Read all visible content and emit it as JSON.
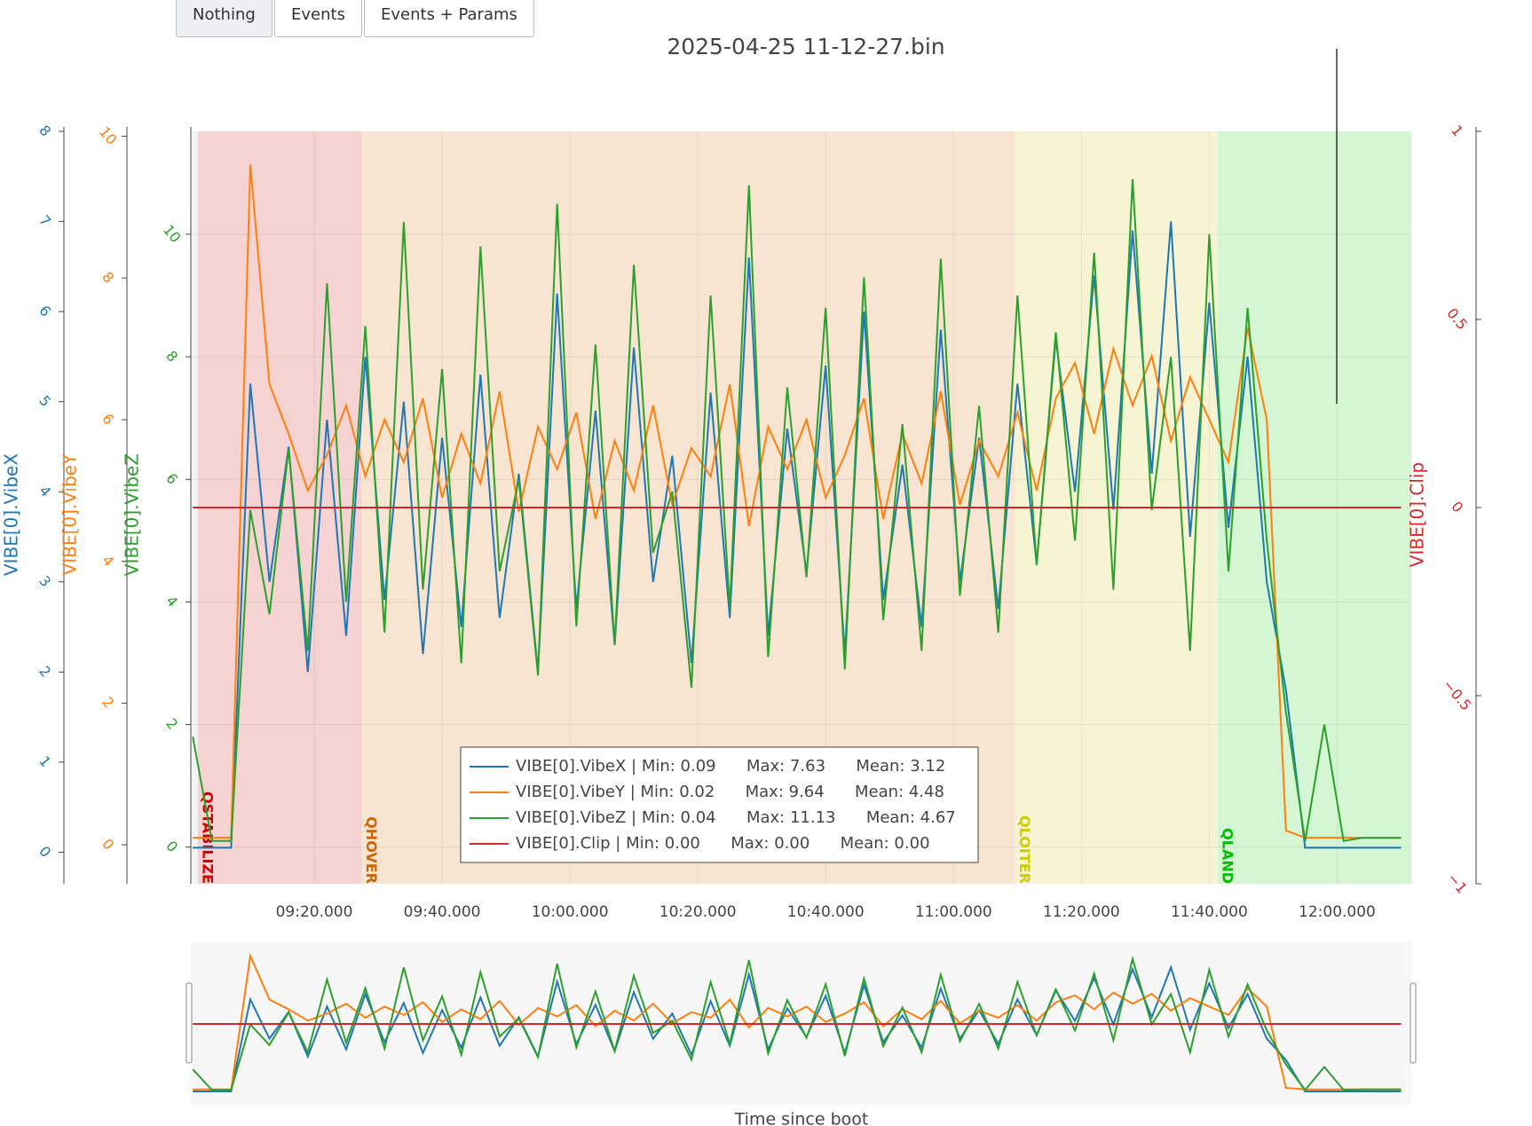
{
  "buttons": [
    "Nothing",
    "Events",
    "Events + Params"
  ],
  "chart_data": {
    "type": "line",
    "title": "2025-04-25 11-12-27.bin",
    "xlabel": "Time since boot",
    "x": [
      541,
      544,
      547,
      550,
      553,
      556,
      559,
      562,
      565,
      568,
      571,
      574,
      577,
      580,
      583,
      586,
      589,
      592,
      595,
      598,
      601,
      604,
      607,
      610,
      613,
      616,
      619,
      622,
      625,
      628,
      631,
      634,
      637,
      640,
      643,
      646,
      649,
      652,
      655,
      658,
      661,
      664,
      667,
      670,
      673,
      676,
      679,
      682,
      685,
      688,
      691,
      694,
      697,
      700,
      703,
      706,
      709,
      712,
      715,
      718,
      721,
      724,
      727,
      730
    ],
    "xlim": [
      540.7,
      731.6
    ],
    "xticks": [
      {
        "value": 560,
        "label": "09:20.000"
      },
      {
        "value": 580,
        "label": "09:40.000"
      },
      {
        "value": 600,
        "label": "10:00.000"
      },
      {
        "value": 620,
        "label": "10:20.000"
      },
      {
        "value": 640,
        "label": "10:40.000"
      },
      {
        "value": 660,
        "label": "11:00.000"
      },
      {
        "value": 680,
        "label": "11:20.000"
      },
      {
        "value": 700,
        "label": "11:40.000"
      },
      {
        "value": 720,
        "label": "12:00.000"
      }
    ],
    "grid": true,
    "legend_position": "bottom-center",
    "series": [
      {
        "name": "VIBE[0].VibeX",
        "color": "#1f77b4",
        "legend": "VIBE[0].VibeX | Min: 0.09      Max: 7.63      Mean: 3.12",
        "ylim": [
          -0.35,
          8
        ],
        "yticks": [
          0,
          1,
          2,
          3,
          4,
          5,
          6,
          7,
          8
        ],
        "values": [
          0.05,
          0.05,
          0.05,
          5.2,
          3.0,
          4.5,
          2.0,
          4.8,
          2.4,
          5.5,
          2.8,
          5.0,
          2.2,
          4.6,
          2.5,
          5.3,
          2.6,
          4.2,
          2.0,
          6.2,
          2.7,
          4.9,
          2.3,
          5.6,
          3.0,
          4.4,
          2.1,
          5.1,
          2.6,
          6.6,
          2.4,
          4.7,
          3.1,
          5.4,
          2.2,
          6.0,
          2.8,
          4.3,
          2.5,
          5.8,
          3.0,
          4.6,
          2.7,
          5.2,
          3.2,
          5.7,
          4.0,
          6.4,
          3.8,
          6.9,
          4.2,
          7.0,
          3.5,
          6.1,
          3.6,
          5.5,
          3.0,
          1.8,
          0.05,
          0.05,
          0.05,
          0.05,
          0.05,
          0.05
        ]
      },
      {
        "name": "VIBE[0].VibeY",
        "color": "#ff7f0e",
        "legend": "VIBE[0].VibeY | Min: 0.02      Max: 9.64      Mean: 4.48",
        "ylim": [
          -0.55,
          10.07
        ],
        "yticks": [
          0,
          2,
          4,
          6,
          8,
          10
        ],
        "values": [
          0.1,
          0.1,
          0.1,
          9.6,
          6.5,
          5.8,
          5.0,
          5.5,
          6.2,
          5.2,
          6.0,
          5.4,
          6.3,
          4.9,
          5.8,
          5.1,
          6.4,
          4.7,
          5.9,
          5.3,
          6.1,
          4.6,
          5.7,
          5.0,
          6.2,
          4.8,
          5.6,
          5.2,
          6.5,
          4.5,
          5.9,
          5.3,
          6.0,
          4.9,
          5.5,
          6.3,
          4.6,
          5.8,
          5.1,
          6.4,
          4.8,
          5.7,
          5.2,
          6.1,
          5.0,
          6.3,
          6.8,
          5.8,
          7.0,
          6.2,
          6.9,
          5.7,
          6.6,
          6.0,
          5.4,
          7.3,
          6.0,
          0.2,
          0.1,
          0.1,
          0.1,
          0.1,
          0.1,
          0.1
        ]
      },
      {
        "name": "VIBE[0].VibeZ",
        "color": "#2ca02c",
        "legend": "VIBE[0].VibeZ | Min: 0.04      Max: 11.13      Mean: 4.67",
        "ylim": [
          -0.6,
          11.68
        ],
        "yticks": [
          0,
          2,
          4,
          6,
          8,
          10
        ],
        "values": [
          1.8,
          0.1,
          0.1,
          5.5,
          3.8,
          6.5,
          3.2,
          9.2,
          4.0,
          8.5,
          3.5,
          10.2,
          4.2,
          7.8,
          3.0,
          9.8,
          4.5,
          6.0,
          2.8,
          10.5,
          3.6,
          8.2,
          3.3,
          9.5,
          4.8,
          5.8,
          2.6,
          9.0,
          3.9,
          10.8,
          3.1,
          7.5,
          4.4,
          8.8,
          2.9,
          9.3,
          3.7,
          6.9,
          3.2,
          9.6,
          4.1,
          7.2,
          3.5,
          9.0,
          4.6,
          8.4,
          5.0,
          9.7,
          4.2,
          10.9,
          5.5,
          8.0,
          3.2,
          10.0,
          4.5,
          8.8,
          5.0,
          2.2,
          0.1,
          2.0,
          0.1,
          0.15,
          0.15,
          0.15
        ]
      },
      {
        "name": "VIBE[0].Clip",
        "color": "#d62728",
        "axis_side": "right",
        "legend": "VIBE[0].Clip | Min: 0.00      Max: 0.00      Mean: 0.00",
        "ylim": [
          -1,
          1
        ],
        "yticks": [
          {
            "value": -1,
            "label": "−1"
          },
          {
            "value": -0.5,
            "label": "−0.5"
          },
          0,
          0.5,
          1
        ],
        "values": [
          0,
          0,
          0,
          0,
          0,
          0,
          0,
          0,
          0,
          0,
          0,
          0,
          0,
          0,
          0,
          0,
          0,
          0,
          0,
          0,
          0,
          0,
          0,
          0,
          0,
          0,
          0,
          0,
          0,
          0,
          0,
          0,
          0,
          0,
          0,
          0,
          0,
          0,
          0,
          0,
          0,
          0,
          0,
          0,
          0,
          0,
          0,
          0,
          0,
          0,
          0,
          0,
          0,
          0,
          0,
          0,
          0,
          0,
          0,
          0,
          0,
          0,
          0,
          0
        ]
      }
    ],
    "modes": [
      {
        "label": "QSTABILIZE",
        "start": 541.8,
        "end": 567.4,
        "color": "#f6d3d3",
        "label_color": "#cc0000"
      },
      {
        "label": "QHOVER",
        "start": 567.4,
        "end": 669.6,
        "color": "#f7e5d2",
        "label_color": "#cc6600"
      },
      {
        "label": "QLOITER",
        "start": 669.6,
        "end": 701.3,
        "color": "#f6f4d2",
        "label_color": "#cccc00"
      },
      {
        "label": "QLAND",
        "start": 701.3,
        "end": 731.6,
        "color": "#d4f6d2",
        "label_color": "#00bb00"
      }
    ]
  }
}
